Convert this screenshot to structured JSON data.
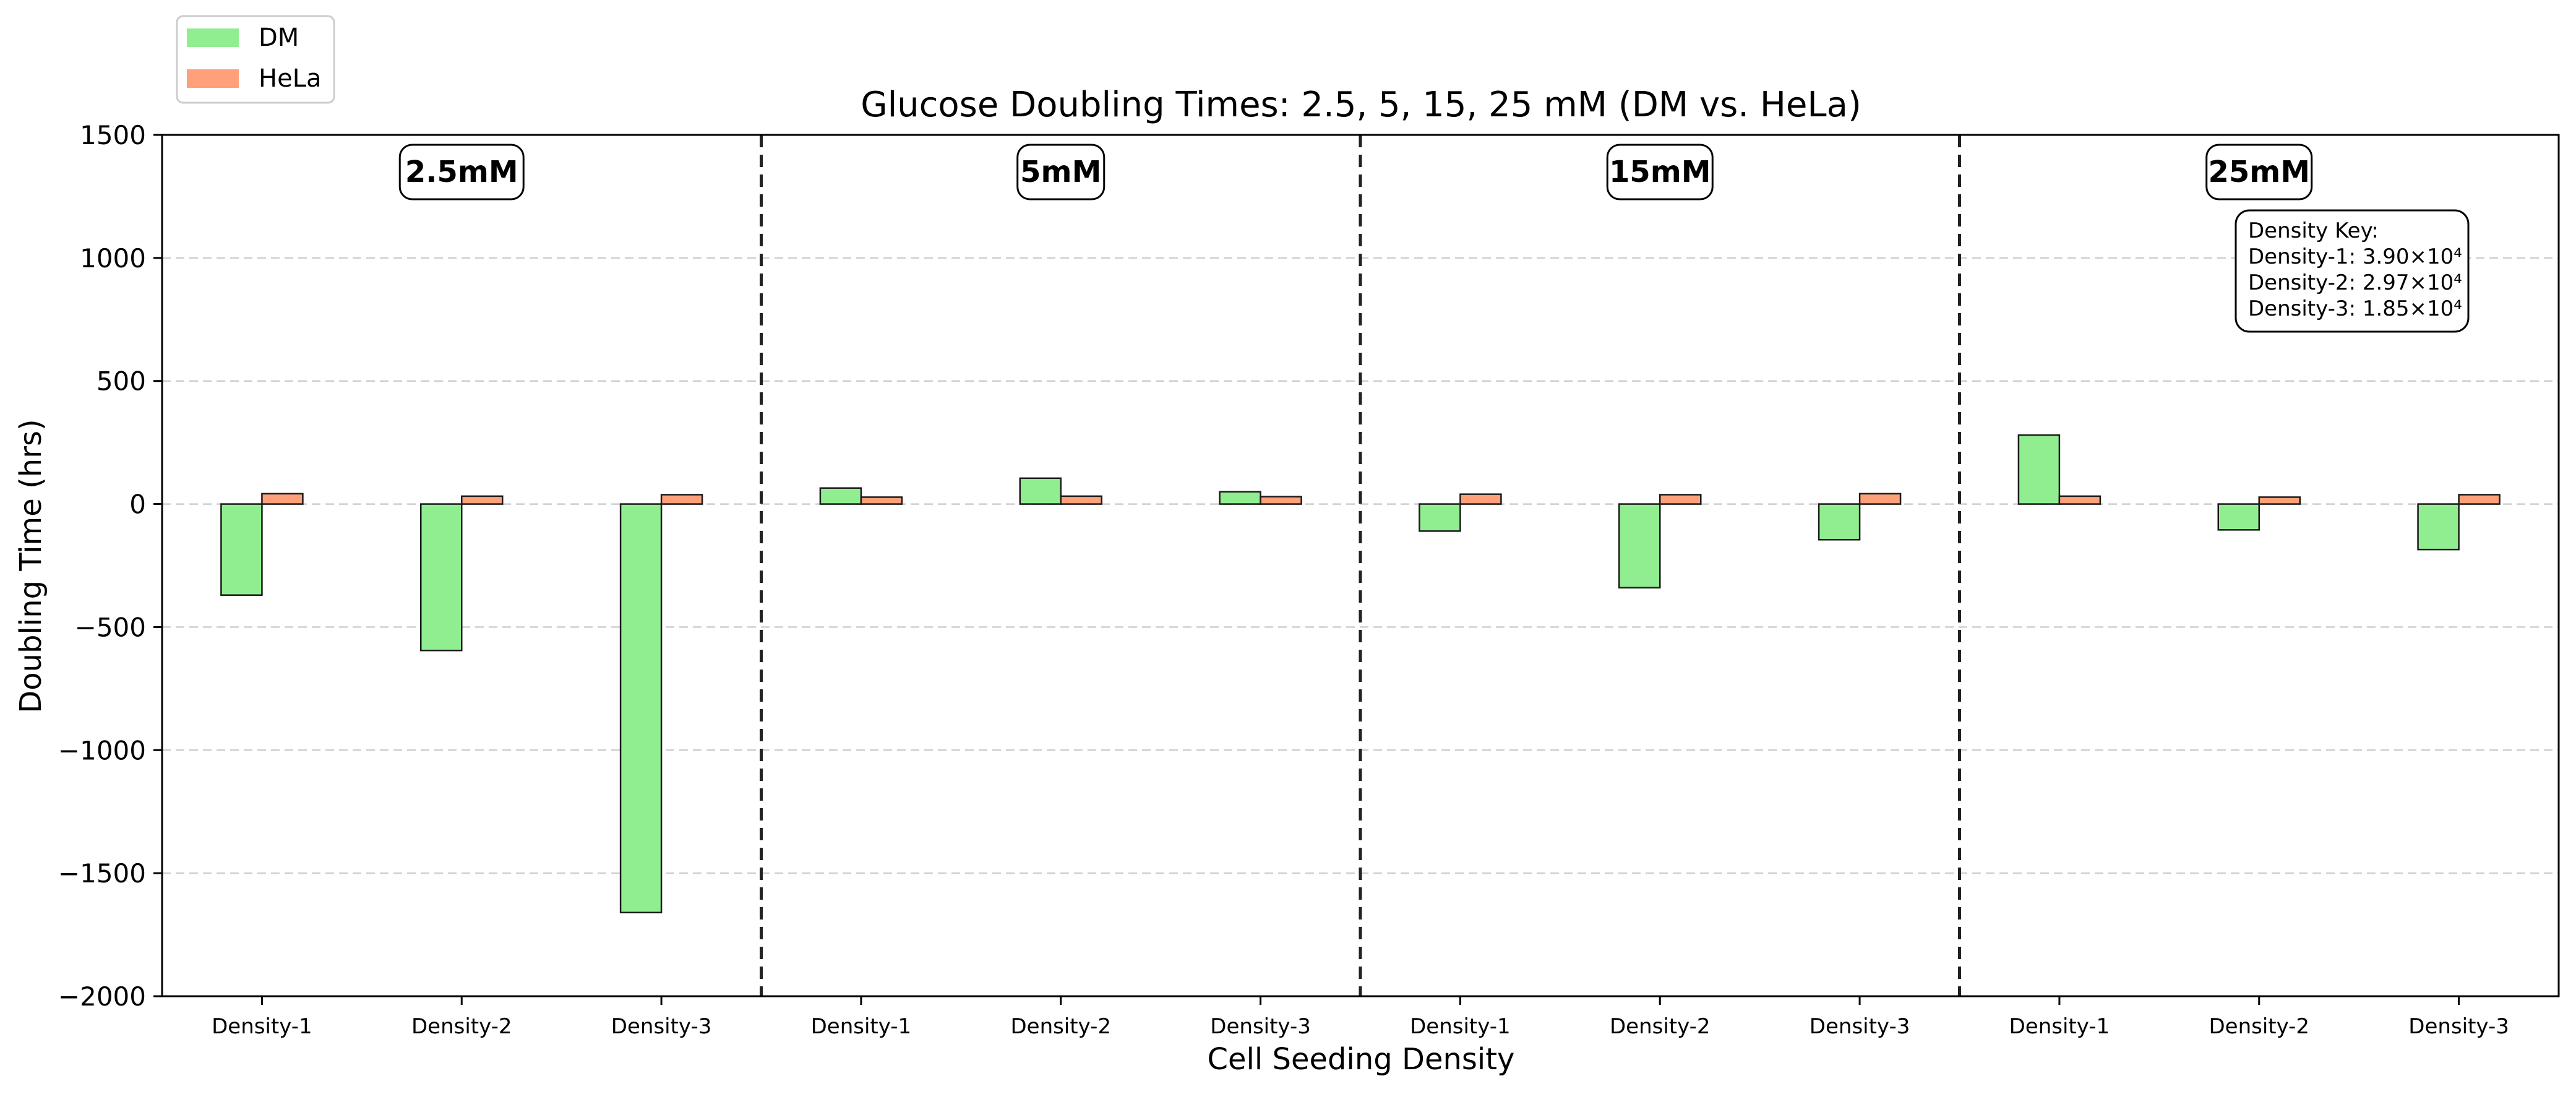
{
  "chart_data": {
    "type": "bar",
    "title": "Glucose Doubling Times: 2.5, 5, 15, 25 mM (DM vs. HeLa)",
    "xlabel": "Cell Seeding Density",
    "ylabel": "Doubling Time (hrs)",
    "ylim": [
      -2000,
      1500
    ],
    "yticks": [
      1500,
      1000,
      500,
      0,
      -500,
      -1000,
      -1500,
      -2000
    ],
    "ytick_labels": [
      "1500",
      "1000",
      "500",
      "0",
      "−500",
      "−1000",
      "−1500",
      "−2000"
    ],
    "grid": "y-dashed",
    "legend_position": "top-left",
    "categories": [
      "Density-1",
      "Density-2",
      "Density-3",
      "Density-1",
      "Density-2",
      "Density-3",
      "Density-1",
      "Density-2",
      "Density-3",
      "Density-1",
      "Density-2",
      "Density-3"
    ],
    "groups": [
      "2.5mM",
      "5mM",
      "15mM",
      "25mM"
    ],
    "series": [
      {
        "name": "DM",
        "color": "#90ee90",
        "values": [
          -370,
          -595,
          -1660,
          65,
          105,
          50,
          -110,
          -340,
          -145,
          280,
          -105,
          -185
        ]
      },
      {
        "name": "HeLa",
        "color": "#ffa07a",
        "values": [
          42,
          32,
          38,
          28,
          32,
          30,
          40,
          38,
          42,
          32,
          28,
          38
        ]
      }
    ],
    "annotation": {
      "lines": [
        "Density Key:",
        "Density-1: 3.90×10⁴",
        "Density-2: 2.97×10⁴",
        "Density-3: 1.85×10⁴"
      ]
    }
  }
}
